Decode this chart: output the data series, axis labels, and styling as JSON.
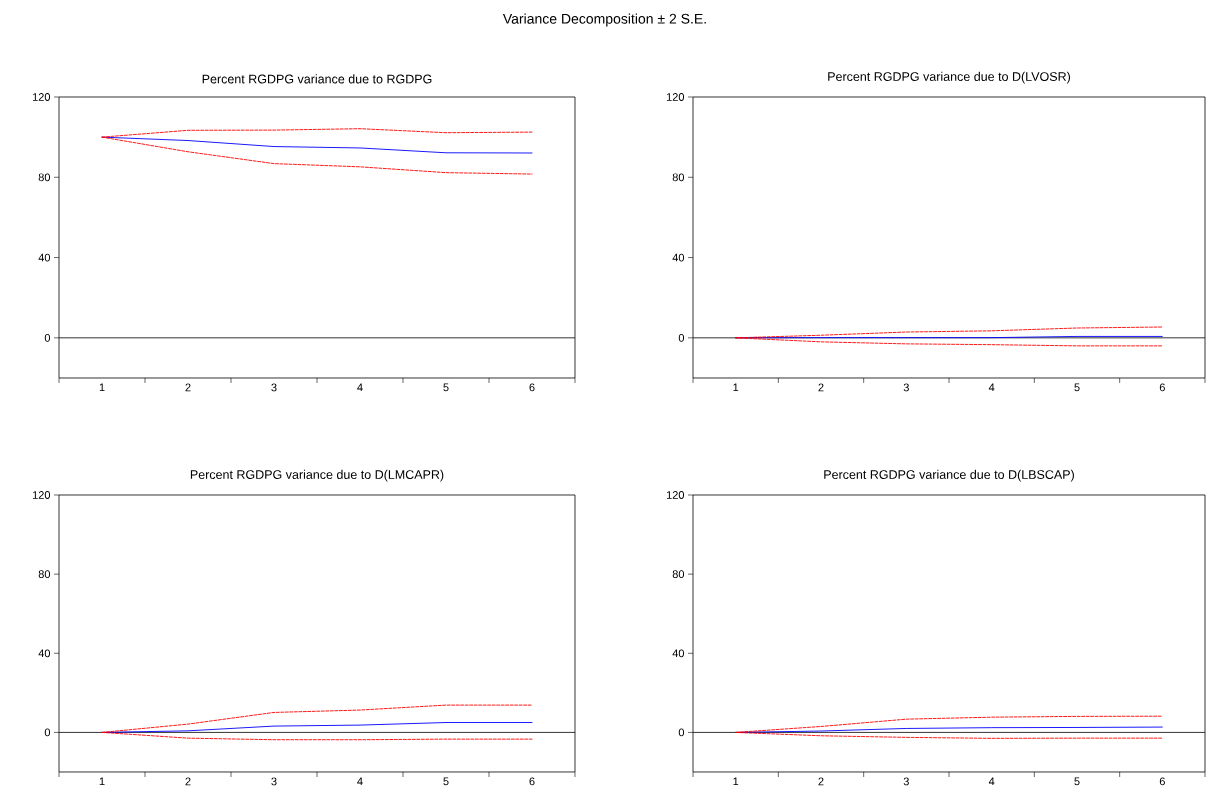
{
  "chart_data": [
    {
      "type": "line",
      "title": "Percent RGDPG variance due to RGDPG",
      "annotations": [
        "Variance Decomposition ± 2 S.E."
      ],
      "categories": [
        "1",
        "2",
        "3",
        "4",
        "5",
        "6"
      ],
      "ylim": [
        -20,
        120
      ],
      "yticks": [
        0,
        40,
        80,
        120
      ],
      "grid": false,
      "marker": "none",
      "ref_lines": [
        {
          "axis": "y",
          "value": 0,
          "color": "#000000"
        }
      ],
      "series": [
        {
          "color": "#ff0000",
          "line_style": "dashed",
          "values": [
            100,
            103.4,
            103.5,
            104.2,
            102.2,
            102.5
          ]
        },
        {
          "color": "#0000ff",
          "line_style": "solid",
          "values": [
            100,
            98.3,
            95.3,
            94.6,
            92.2,
            92.1
          ]
        },
        {
          "color": "#ff0000",
          "line_style": "dashed",
          "values": [
            100,
            92.7,
            86.8,
            85.2,
            82.3,
            81.6
          ]
        }
      ]
    },
    {
      "type": "line",
      "title": "Percent RGDPG variance due to D(LVOSR)",
      "categories": [
        "1",
        "2",
        "3",
        "4",
        "5",
        "6"
      ],
      "ylim": [
        -20,
        120
      ],
      "yticks": [
        0,
        40,
        80,
        120
      ],
      "grid": false,
      "marker": "none",
      "ref_lines": [
        {
          "axis": "y",
          "value": 0,
          "color": "#000000"
        }
      ],
      "series": [
        {
          "color": "#ff0000",
          "line_style": "dashed",
          "values": [
            0,
            1.3,
            2.9,
            3.5,
            4.9,
            5.4
          ]
        },
        {
          "color": "#0000ff",
          "line_style": "solid",
          "values": [
            0,
            0.1,
            0.1,
            0.1,
            0.7,
            0.7
          ]
        },
        {
          "color": "#ff0000",
          "line_style": "dashed",
          "values": [
            0,
            -2.0,
            -3.0,
            -3.4,
            -4.0,
            -4.0
          ]
        }
      ]
    },
    {
      "type": "line",
      "title": "Percent RGDPG variance due to D(LMCAPR)",
      "categories": [
        "1",
        "2",
        "3",
        "4",
        "5",
        "6"
      ],
      "ylim": [
        -20,
        120
      ],
      "yticks": [
        0,
        40,
        80,
        120
      ],
      "grid": false,
      "marker": "none",
      "ref_lines": [
        {
          "axis": "y",
          "value": 0,
          "color": "#000000"
        }
      ],
      "series": [
        {
          "color": "#ff0000",
          "line_style": "dashed",
          "values": [
            0,
            4.2,
            10.1,
            11.3,
            13.8,
            13.8
          ]
        },
        {
          "color": "#0000ff",
          "line_style": "solid",
          "values": [
            0,
            0.8,
            3.2,
            3.7,
            5.0,
            5.0
          ]
        },
        {
          "color": "#ff0000",
          "line_style": "dashed",
          "values": [
            0,
            -2.9,
            -3.7,
            -3.7,
            -3.4,
            -3.4
          ]
        }
      ]
    },
    {
      "type": "line",
      "title": "Percent RGDPG variance due to D(LBSCAP)",
      "categories": [
        "1",
        "2",
        "3",
        "4",
        "5",
        "6"
      ],
      "ylim": [
        -20,
        120
      ],
      "yticks": [
        0,
        40,
        80,
        120
      ],
      "grid": false,
      "marker": "none",
      "ref_lines": [
        {
          "axis": "y",
          "value": 0,
          "color": "#000000"
        }
      ],
      "series": [
        {
          "color": "#ff0000",
          "line_style": "dashed",
          "values": [
            0,
            3.0,
            6.7,
            7.7,
            8.1,
            8.2
          ]
        },
        {
          "color": "#0000ff",
          "line_style": "solid",
          "values": [
            0,
            0.7,
            2.0,
            2.4,
            2.5,
            2.7
          ]
        },
        {
          "color": "#ff0000",
          "line_style": "dashed",
          "values": [
            0,
            -1.7,
            -2.5,
            -3.0,
            -2.9,
            -2.9
          ]
        }
      ]
    }
  ]
}
